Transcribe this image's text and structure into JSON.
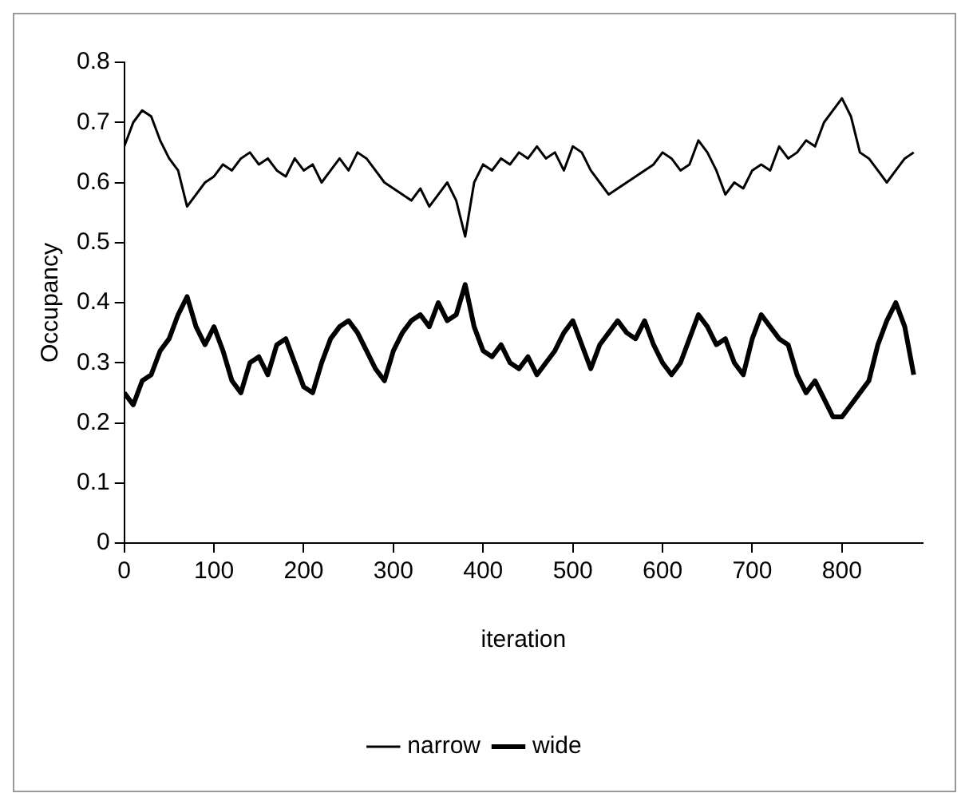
{
  "chart_data": {
    "type": "line",
    "xlabel": "iteration",
    "ylabel": "Occupancy",
    "x": [
      0,
      10,
      20,
      30,
      40,
      50,
      60,
      70,
      80,
      90,
      100,
      110,
      120,
      130,
      140,
      150,
      160,
      170,
      180,
      190,
      200,
      210,
      220,
      230,
      240,
      250,
      260,
      270,
      280,
      290,
      300,
      310,
      320,
      330,
      340,
      350,
      360,
      370,
      380,
      390,
      400,
      410,
      420,
      430,
      440,
      450,
      460,
      470,
      480,
      490,
      500,
      510,
      520,
      530,
      540,
      550,
      560,
      570,
      580,
      590,
      600,
      610,
      620,
      630,
      640,
      650,
      660,
      670,
      680,
      690,
      700,
      710,
      720,
      730,
      740,
      750,
      760,
      770,
      780,
      790,
      800,
      810,
      820,
      830,
      840,
      850,
      860,
      870,
      880
    ],
    "series": [
      {
        "name": "narrow",
        "color": "#000000",
        "values": [
          0.66,
          0.7,
          0.72,
          0.71,
          0.67,
          0.64,
          0.62,
          0.56,
          0.58,
          0.6,
          0.61,
          0.63,
          0.62,
          0.64,
          0.65,
          0.63,
          0.64,
          0.62,
          0.61,
          0.64,
          0.62,
          0.63,
          0.6,
          0.62,
          0.64,
          0.62,
          0.65,
          0.64,
          0.62,
          0.6,
          0.59,
          0.58,
          0.57,
          0.59,
          0.56,
          0.58,
          0.6,
          0.57,
          0.51,
          0.6,
          0.63,
          0.62,
          0.64,
          0.63,
          0.65,
          0.64,
          0.66,
          0.64,
          0.65,
          0.62,
          0.66,
          0.65,
          0.62,
          0.6,
          0.58,
          0.59,
          0.6,
          0.61,
          0.62,
          0.63,
          0.65,
          0.64,
          0.62,
          0.63,
          0.67,
          0.65,
          0.62,
          0.58,
          0.6,
          0.59,
          0.62,
          0.63,
          0.62,
          0.66,
          0.64,
          0.65,
          0.67,
          0.66,
          0.7,
          0.72,
          0.74,
          0.71,
          0.65,
          0.64,
          0.62,
          0.6,
          0.62,
          0.64,
          0.65
        ]
      },
      {
        "name": "wide",
        "color": "#000000",
        "values": [
          0.25,
          0.23,
          0.27,
          0.28,
          0.32,
          0.34,
          0.38,
          0.41,
          0.36,
          0.33,
          0.36,
          0.32,
          0.27,
          0.25,
          0.3,
          0.31,
          0.28,
          0.33,
          0.34,
          0.3,
          0.26,
          0.25,
          0.3,
          0.34,
          0.36,
          0.37,
          0.35,
          0.32,
          0.29,
          0.27,
          0.32,
          0.35,
          0.37,
          0.38,
          0.36,
          0.4,
          0.37,
          0.38,
          0.43,
          0.36,
          0.32,
          0.31,
          0.33,
          0.3,
          0.29,
          0.31,
          0.28,
          0.3,
          0.32,
          0.35,
          0.37,
          0.33,
          0.29,
          0.33,
          0.35,
          0.37,
          0.35,
          0.34,
          0.37,
          0.33,
          0.3,
          0.28,
          0.3,
          0.34,
          0.38,
          0.36,
          0.33,
          0.34,
          0.3,
          0.28,
          0.34,
          0.38,
          0.36,
          0.34,
          0.33,
          0.28,
          0.25,
          0.27,
          0.24,
          0.21,
          0.21,
          0.23,
          0.25,
          0.27,
          0.33,
          0.37,
          0.4,
          0.36,
          0.28
        ]
      }
    ],
    "xlim": [
      0,
      890
    ],
    "xticks": [
      0,
      100,
      200,
      300,
      400,
      500,
      600,
      700,
      800
    ],
    "ylim": [
      0,
      0.8
    ],
    "yticks": [
      0,
      0.1,
      0.2,
      0.3,
      0.4,
      0.5,
      0.6,
      0.7,
      0.8
    ],
    "grid": false,
    "legend": "bottom",
    "marker": "none",
    "line_style": "solid"
  }
}
